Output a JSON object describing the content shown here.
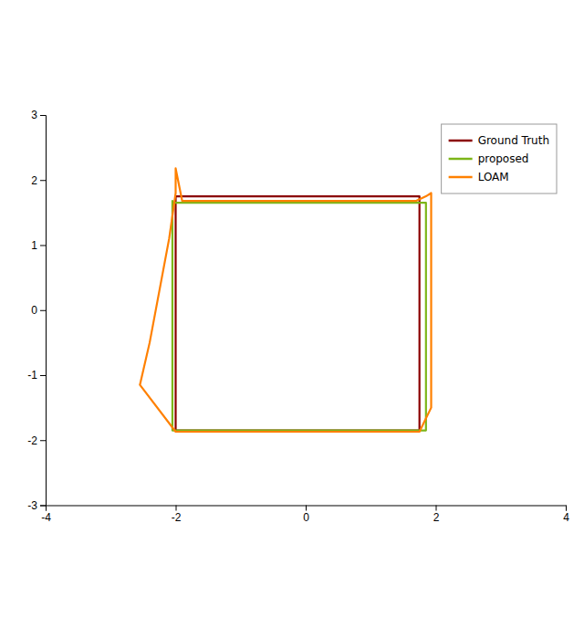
{
  "chart_data": {
    "type": "line",
    "series": [
      {
        "name": "Ground Truth",
        "color": "#8B0000",
        "x": [
          -2.0,
          -2.0,
          -2.0,
          -2.0,
          -2.0,
          -2.0,
          -2.0,
          -2.0,
          -2.0,
          -2.0,
          -1.95,
          -1.8,
          -1.4,
          -0.9,
          -0.3,
          0.3,
          0.9,
          1.4,
          1.75,
          1.75,
          1.75,
          1.75,
          1.75,
          1.75,
          1.75,
          1.75,
          1.75,
          1.75,
          1.6,
          1.2,
          0.7,
          0.2,
          -0.3,
          -0.8,
          -1.3,
          -1.7,
          -2.0,
          -2.0
        ],
        "values": [
          1.75,
          1.5,
          1.0,
          0.5,
          0.0,
          -0.5,
          -1.0,
          -1.5,
          -1.85,
          -1.85,
          -1.85,
          -1.85,
          -1.85,
          -1.85,
          -1.85,
          -1.85,
          -1.85,
          -1.85,
          -1.85,
          -1.5,
          -1.0,
          -0.5,
          0.0,
          0.5,
          1.0,
          1.4,
          1.75,
          1.75,
          1.75,
          1.75,
          1.75,
          1.75,
          1.75,
          1.75,
          1.75,
          1.75,
          1.75,
          1.75
        ]
      },
      {
        "name": "proposed",
        "color": "#7CB518",
        "x": [
          -2.05,
          -2.05,
          -2.05,
          -2.05,
          -2.05,
          -2.05,
          -2.05,
          -2.05,
          -2.05,
          -2.05,
          -1.95,
          -1.8,
          -1.4,
          -0.9,
          -0.3,
          0.3,
          0.9,
          1.4,
          1.85,
          1.85,
          1.85,
          1.85,
          1.85,
          1.85,
          1.85,
          1.85,
          1.85,
          1.85,
          1.65,
          1.2,
          0.7,
          0.2,
          -0.3,
          -0.8,
          -1.3,
          -1.75,
          -2.05,
          -2.05
        ],
        "values": [
          1.68,
          1.5,
          1.0,
          0.5,
          0.0,
          -0.5,
          -1.0,
          -1.5,
          -1.78,
          -1.85,
          -1.85,
          -1.85,
          -1.85,
          -1.85,
          -1.85,
          -1.85,
          -1.85,
          -1.85,
          -1.85,
          -1.5,
          -1.0,
          -0.5,
          0.0,
          0.5,
          1.0,
          1.4,
          1.65,
          1.65,
          1.65,
          1.65,
          1.65,
          1.65,
          1.65,
          1.65,
          1.65,
          1.65,
          1.65,
          1.68
        ]
      },
      {
        "name": "LOAM",
        "color": "#FF8000",
        "x": [
          -2.55,
          -2.4,
          -2.25,
          -2.1,
          -2.0,
          -2.0,
          -2.0,
          -2.0,
          -1.9,
          -1.5,
          -0.9,
          -0.3,
          0.3,
          0.9,
          1.4,
          1.7,
          1.85,
          1.93,
          1.93,
          1.93,
          1.93,
          1.93,
          1.93,
          1.93,
          1.93,
          1.75,
          1.4,
          0.9,
          0.3,
          -0.3,
          -0.9,
          -1.5,
          -1.9,
          -2.0,
          -2.55
        ],
        "values": [
          -1.15,
          -0.5,
          0.3,
          1.1,
          1.8,
          2.18,
          2.18,
          2.18,
          1.68,
          1.68,
          1.68,
          1.68,
          1.68,
          1.68,
          1.68,
          1.68,
          1.75,
          1.8,
          1.5,
          1.0,
          0.5,
          0.0,
          -0.5,
          -1.0,
          -1.5,
          -1.87,
          -1.87,
          -1.87,
          -1.87,
          -1.87,
          -1.87,
          -1.87,
          -1.87,
          -1.87,
          -1.15
        ]
      }
    ],
    "xlim": [
      -4,
      4
    ],
    "ylim": [
      -3,
      3
    ],
    "xticks": [
      -4,
      -2,
      0,
      2,
      4
    ],
    "yticks": [
      -3,
      -2,
      -1,
      0,
      1,
      2,
      3
    ],
    "grid": false,
    "legend": "upper right"
  }
}
